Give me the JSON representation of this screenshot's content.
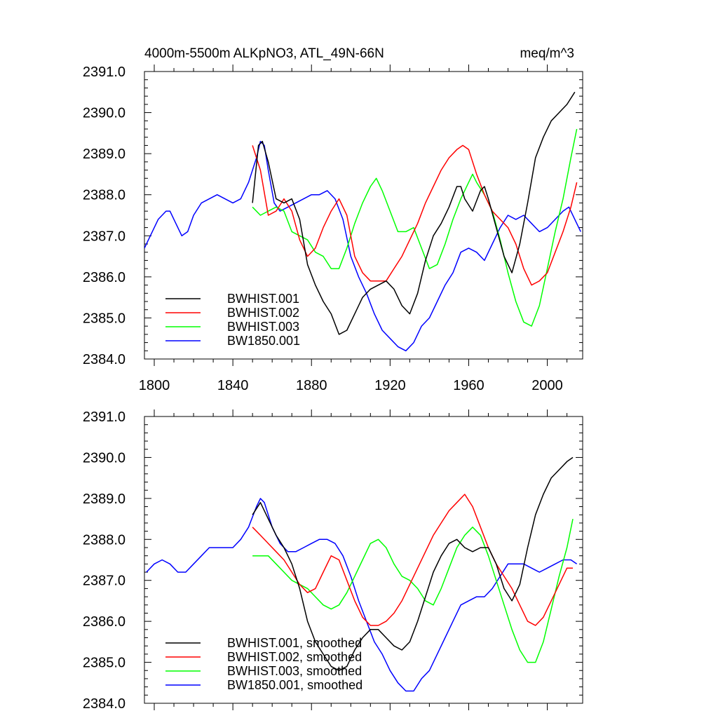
{
  "chart_data": [
    {
      "type": "line",
      "title": "4000m-5500m ALKpNO3, ATL_49N-66N",
      "units": "meq/m^3",
      "xlabel": "",
      "ylabel": "",
      "xlim": [
        1795,
        2018
      ],
      "ylim": [
        2384.0,
        2391.0
      ],
      "x_ticks": [
        1800,
        1840,
        1880,
        1920,
        1960,
        2000
      ],
      "x_tick_labels": [
        "1800",
        "1840",
        "1880",
        "1920",
        "1960",
        "2000"
      ],
      "y_ticks": [
        2384.0,
        2385.0,
        2386.0,
        2387.0,
        2388.0,
        2389.0,
        2390.0,
        2391.0
      ],
      "y_tick_labels": [
        "2384.0",
        "2385.0",
        "2386.0",
        "2387.0",
        "2388.0",
        "2389.0",
        "2390.0",
        "2391.0"
      ],
      "legend_position": "bottom-left",
      "series": [
        {
          "name": "BWHIST.001",
          "color": "#000000",
          "x": [
            1850,
            1853,
            1855,
            1858,
            1862,
            1866,
            1870,
            1874,
            1878,
            1882,
            1886,
            1890,
            1894,
            1898,
            1902,
            1906,
            1910,
            1914,
            1918,
            1922,
            1926,
            1930,
            1934,
            1938,
            1942,
            1946,
            1950,
            1954,
            1956,
            1958,
            1962,
            1966,
            1968,
            1970,
            1974,
            1978,
            1982,
            1986,
            1990,
            1994,
            1998,
            2002,
            2006,
            2010,
            2014
          ],
          "y": [
            2387.8,
            2389.2,
            2389.3,
            2388.8,
            2387.9,
            2387.8,
            2387.9,
            2387.4,
            2386.3,
            2385.8,
            2385.4,
            2385.1,
            2384.6,
            2384.7,
            2385.1,
            2385.5,
            2385.7,
            2385.8,
            2385.9,
            2385.7,
            2385.3,
            2385.1,
            2385.6,
            2386.4,
            2387.0,
            2387.3,
            2387.7,
            2388.2,
            2388.2,
            2387.9,
            2387.6,
            2388.1,
            2388.2,
            2387.9,
            2387.2,
            2386.5,
            2386.1,
            2386.8,
            2387.8,
            2388.9,
            2389.4,
            2389.8,
            2390.0,
            2390.2,
            2390.5
          ]
        },
        {
          "name": "BWHIST.002",
          "color": "#ff0000",
          "x": [
            1850,
            1854,
            1858,
            1862,
            1866,
            1870,
            1874,
            1878,
            1882,
            1886,
            1890,
            1894,
            1898,
            1902,
            1906,
            1910,
            1914,
            1918,
            1922,
            1926,
            1930,
            1934,
            1938,
            1942,
            1946,
            1950,
            1954,
            1957,
            1960,
            1964,
            1968,
            1972,
            1976,
            1980,
            1984,
            1988,
            1992,
            1996,
            2000,
            2004,
            2008,
            2012,
            2015
          ],
          "y": [
            2389.2,
            2388.6,
            2387.5,
            2387.6,
            2387.9,
            2387.6,
            2386.9,
            2386.5,
            2386.7,
            2387.2,
            2387.6,
            2387.9,
            2387.5,
            2386.5,
            2386.1,
            2385.9,
            2385.9,
            2385.9,
            2386.2,
            2386.5,
            2386.9,
            2387.3,
            2387.8,
            2388.2,
            2388.6,
            2388.9,
            2389.1,
            2389.2,
            2389.1,
            2388.5,
            2388.0,
            2387.6,
            2387.4,
            2387.2,
            2386.8,
            2386.2,
            2385.8,
            2385.9,
            2386.1,
            2386.6,
            2387.1,
            2387.7,
            2388.3
          ]
        },
        {
          "name": "BWHIST.003",
          "color": "#00ff00",
          "x": [
            1850,
            1854,
            1858,
            1862,
            1866,
            1870,
            1874,
            1878,
            1882,
            1886,
            1890,
            1894,
            1898,
            1902,
            1906,
            1910,
            1913,
            1916,
            1920,
            1924,
            1928,
            1932,
            1936,
            1940,
            1944,
            1948,
            1952,
            1956,
            1960,
            1962,
            1964,
            1968,
            1972,
            1976,
            1980,
            1984,
            1988,
            1992,
            1996,
            2000,
            2004,
            2008,
            2012,
            2015
          ],
          "y": [
            2387.7,
            2387.5,
            2387.6,
            2387.7,
            2387.6,
            2387.1,
            2387.0,
            2386.9,
            2386.6,
            2386.5,
            2386.2,
            2386.2,
            2386.7,
            2387.3,
            2387.8,
            2388.2,
            2388.4,
            2388.1,
            2387.6,
            2387.1,
            2387.1,
            2387.2,
            2386.7,
            2386.2,
            2386.3,
            2386.8,
            2387.4,
            2387.9,
            2388.3,
            2388.5,
            2388.3,
            2388.0,
            2387.6,
            2386.9,
            2386.1,
            2385.4,
            2384.9,
            2384.8,
            2385.3,
            2386.2,
            2387.1,
            2387.9,
            2388.9,
            2389.6
          ]
        },
        {
          "name": "BW1850.001",
          "color": "#0000ff",
          "x": [
            1795,
            1798,
            1802,
            1806,
            1808,
            1811,
            1814,
            1817,
            1820,
            1824,
            1828,
            1832,
            1836,
            1840,
            1844,
            1848,
            1852,
            1854,
            1856,
            1858,
            1861,
            1864,
            1868,
            1872,
            1876,
            1880,
            1884,
            1888,
            1892,
            1896,
            1900,
            1904,
            1908,
            1912,
            1916,
            1920,
            1924,
            1928,
            1932,
            1936,
            1940,
            1944,
            1948,
            1952,
            1956,
            1960,
            1964,
            1968,
            1972,
            1976,
            1980,
            1984,
            1988,
            1992,
            1996,
            2000,
            2004,
            2008,
            2011,
            2014,
            2017
          ],
          "y": [
            2386.7,
            2387.0,
            2387.4,
            2387.6,
            2387.6,
            2387.3,
            2387.0,
            2387.1,
            2387.5,
            2387.8,
            2387.9,
            2388.0,
            2387.9,
            2387.8,
            2387.9,
            2388.3,
            2388.9,
            2389.3,
            2389.2,
            2388.6,
            2387.8,
            2387.6,
            2387.7,
            2387.8,
            2387.9,
            2388.0,
            2388.0,
            2388.1,
            2387.9,
            2387.4,
            2386.5,
            2386.0,
            2385.6,
            2385.1,
            2384.7,
            2384.5,
            2384.3,
            2384.2,
            2384.4,
            2384.8,
            2385.0,
            2385.4,
            2385.8,
            2386.1,
            2386.6,
            2386.7,
            2386.6,
            2386.4,
            2386.8,
            2387.2,
            2387.5,
            2387.4,
            2387.5,
            2387.3,
            2387.1,
            2387.2,
            2387.4,
            2387.6,
            2387.7,
            2387.4,
            2387.1
          ]
        }
      ]
    },
    {
      "type": "line",
      "title": "",
      "xlabel": "",
      "ylabel": "",
      "xlim": [
        1795,
        2018
      ],
      "ylim": [
        2384.0,
        2391.0
      ],
      "x_ticks": [
        1800,
        1840,
        1880,
        1920,
        1960,
        2000
      ],
      "y_ticks": [
        2384.0,
        2385.0,
        2386.0,
        2387.0,
        2388.0,
        2389.0,
        2390.0,
        2391.0
      ],
      "y_tick_labels": [
        "2384.0",
        "2385.0",
        "2386.0",
        "2387.0",
        "2388.0",
        "2389.0",
        "2390.0",
        "2391.0"
      ],
      "legend_position": "bottom-left",
      "series": [
        {
          "name": "BWHIST.001, smoothed",
          "color": "#000000",
          "x": [
            1850,
            1854,
            1858,
            1862,
            1866,
            1870,
            1874,
            1878,
            1882,
            1886,
            1890,
            1894,
            1898,
            1902,
            1906,
            1910,
            1914,
            1918,
            1922,
            1926,
            1930,
            1934,
            1938,
            1942,
            1946,
            1950,
            1954,
            1958,
            1962,
            1966,
            1970,
            1974,
            1978,
            1982,
            1986,
            1990,
            1994,
            1998,
            2002,
            2006,
            2010,
            2013
          ],
          "y": [
            2388.6,
            2388.9,
            2388.5,
            2388.1,
            2387.8,
            2387.4,
            2386.8,
            2386.0,
            2385.5,
            2385.2,
            2384.9,
            2384.8,
            2384.9,
            2385.3,
            2385.6,
            2385.8,
            2385.8,
            2385.6,
            2385.4,
            2385.3,
            2385.5,
            2386.0,
            2386.6,
            2387.2,
            2387.6,
            2387.9,
            2388.0,
            2387.8,
            2387.7,
            2387.8,
            2387.8,
            2387.4,
            2386.8,
            2386.5,
            2386.9,
            2387.8,
            2388.6,
            2389.1,
            2389.5,
            2389.7,
            2389.9,
            2390.0
          ]
        },
        {
          "name": "BWHIST.002, smoothed",
          "color": "#ff0000",
          "x": [
            1850,
            1854,
            1858,
            1862,
            1866,
            1870,
            1874,
            1878,
            1882,
            1886,
            1890,
            1894,
            1898,
            1902,
            1906,
            1910,
            1914,
            1918,
            1922,
            1926,
            1930,
            1934,
            1938,
            1942,
            1946,
            1950,
            1954,
            1958,
            1962,
            1966,
            1970,
            1974,
            1978,
            1982,
            1986,
            1990,
            1994,
            1998,
            2002,
            2006,
            2010,
            2013
          ],
          "y": [
            2388.3,
            2388.1,
            2387.9,
            2387.7,
            2387.5,
            2387.2,
            2386.9,
            2386.7,
            2386.8,
            2387.2,
            2387.6,
            2387.5,
            2387.0,
            2386.5,
            2386.1,
            2385.9,
            2385.9,
            2386.0,
            2386.2,
            2386.5,
            2386.9,
            2387.3,
            2387.7,
            2388.1,
            2388.4,
            2388.7,
            2388.9,
            2389.1,
            2388.8,
            2388.3,
            2387.8,
            2387.4,
            2387.1,
            2386.8,
            2386.4,
            2386.0,
            2385.9,
            2386.1,
            2386.5,
            2386.9,
            2387.3,
            2387.3
          ]
        },
        {
          "name": "BWHIST.003, smoothed",
          "color": "#00ff00",
          "x": [
            1850,
            1854,
            1858,
            1862,
            1866,
            1870,
            1874,
            1878,
            1882,
            1886,
            1890,
            1894,
            1898,
            1902,
            1906,
            1910,
            1914,
            1918,
            1922,
            1926,
            1930,
            1934,
            1938,
            1942,
            1946,
            1950,
            1954,
            1958,
            1962,
            1966,
            1970,
            1974,
            1978,
            1982,
            1986,
            1990,
            1994,
            1998,
            2002,
            2006,
            2010,
            2013
          ],
          "y": [
            2387.6,
            2387.6,
            2387.6,
            2387.4,
            2387.2,
            2387.0,
            2386.9,
            2386.8,
            2386.6,
            2386.4,
            2386.3,
            2386.4,
            2386.7,
            2387.1,
            2387.5,
            2387.9,
            2388.0,
            2387.8,
            2387.4,
            2387.1,
            2387.0,
            2386.8,
            2386.5,
            2386.4,
            2386.8,
            2387.3,
            2387.8,
            2388.1,
            2388.3,
            2388.1,
            2387.6,
            2387.0,
            2386.4,
            2385.8,
            2385.3,
            2385.0,
            2385.0,
            2385.5,
            2386.3,
            2387.1,
            2387.8,
            2388.5
          ]
        },
        {
          "name": "BW1850.001, smoothed",
          "color": "#0000ff",
          "x": [
            1796,
            1800,
            1804,
            1808,
            1812,
            1816,
            1820,
            1824,
            1828,
            1832,
            1836,
            1840,
            1844,
            1848,
            1852,
            1854,
            1856,
            1860,
            1864,
            1868,
            1872,
            1876,
            1880,
            1884,
            1888,
            1892,
            1896,
            1900,
            1904,
            1908,
            1912,
            1916,
            1920,
            1924,
            1928,
            1932,
            1936,
            1940,
            1944,
            1948,
            1952,
            1956,
            1960,
            1964,
            1968,
            1972,
            1976,
            1980,
            1984,
            1988,
            1992,
            1996,
            2000,
            2004,
            2008,
            2012,
            2015
          ],
          "y": [
            2387.2,
            2387.4,
            2387.5,
            2387.4,
            2387.2,
            2387.2,
            2387.4,
            2387.6,
            2387.8,
            2387.8,
            2387.8,
            2387.8,
            2388.0,
            2388.3,
            2388.8,
            2389.0,
            2388.9,
            2388.3,
            2387.9,
            2387.7,
            2387.7,
            2387.8,
            2387.9,
            2388.0,
            2388.0,
            2387.9,
            2387.6,
            2387.1,
            2386.5,
            2386.0,
            2385.5,
            2385.2,
            2384.8,
            2384.5,
            2384.3,
            2384.3,
            2384.6,
            2384.8,
            2385.2,
            2385.6,
            2386.0,
            2386.4,
            2386.5,
            2386.6,
            2386.6,
            2386.8,
            2387.1,
            2387.4,
            2387.4,
            2387.4,
            2387.3,
            2387.2,
            2387.3,
            2387.4,
            2387.5,
            2387.5,
            2387.4
          ]
        }
      ]
    }
  ]
}
